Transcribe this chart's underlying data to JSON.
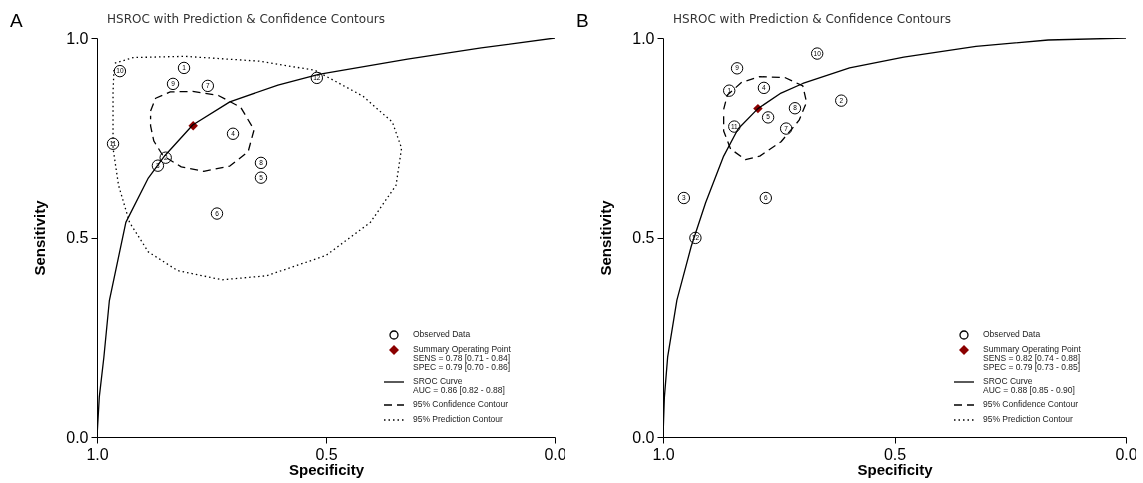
{
  "chart_data": [
    {
      "type": "scatter",
      "title": "HSROC with Prediction & Confidence Contours",
      "xlabel": "Specificity",
      "ylabel": "Sensitivity",
      "xlim": [
        1,
        0
      ],
      "ylim": [
        0,
        1
      ],
      "xticks": [
        {
          "value": 1,
          "label": "1.0"
        },
        {
          "value": 0.5,
          "label": "0.5"
        },
        {
          "value": 0,
          "label": "0.0"
        }
      ],
      "yticks": [
        {
          "value": 0,
          "label": "0.0"
        },
        {
          "value": 0.5,
          "label": "0.5"
        },
        {
          "value": 1,
          "label": "1.0"
        }
      ],
      "legend": "bottom right",
      "annotations": [
        "A",
        "SENS = 0.78 [0.71 - 0.84]",
        "SPEC = 0.79 [0.70 - 0.86]",
        "AUC = 0.86 [0.82 - 0.88]",
        {
          "text": "1",
          "x": 0.81,
          "y": 0.925
        },
        {
          "text": "2",
          "x": 0.85,
          "y": 0.7
        },
        {
          "text": "3",
          "x": 0.867,
          "y": 0.68
        },
        {
          "text": "4",
          "x": 0.703,
          "y": 0.76
        },
        {
          "text": "5",
          "x": 0.642,
          "y": 0.65
        },
        {
          "text": "6",
          "x": 0.738,
          "y": 0.56
        },
        {
          "text": "7",
          "x": 0.758,
          "y": 0.88
        },
        {
          "text": "8",
          "x": 0.642,
          "y": 0.687
        },
        {
          "text": "9",
          "x": 0.834,
          "y": 0.885
        },
        {
          "text": "10",
          "x": 0.95,
          "y": 0.917
        },
        {
          "text": "11",
          "x": 0.965,
          "y": 0.735
        },
        {
          "text": "12",
          "x": 0.52,
          "y": 0.9
        }
      ],
      "series": [
        {
          "name": "Observed Data",
          "marker": "circle",
          "color": "#000000",
          "x": [
            0.81,
            0.85,
            0.867,
            0.703,
            0.642,
            0.738,
            0.758,
            0.642,
            0.834,
            0.95,
            0.965,
            0.52
          ],
          "values": [
            0.925,
            0.7,
            0.68,
            0.76,
            0.65,
            0.56,
            0.88,
            0.687,
            0.885,
            0.917,
            0.735,
            0.9
          ]
        },
        {
          "name": "Summary Operating Point",
          "marker": "diamond",
          "color": "#8b0000",
          "x": [
            0.79
          ],
          "values": [
            0.78
          ]
        },
        {
          "name": "SROC Curve",
          "type": "line",
          "line_style": "solid",
          "color": "#000000",
          "x": [
            1,
            0.995,
            0.985,
            0.973,
            0.937,
            0.888,
            0.852,
            0.791,
            0.71,
            0.605,
            0.516,
            0.322,
            0.161,
            0
          ],
          "values": [
            0,
            0.1,
            0.2,
            0.342,
            0.538,
            0.649,
            0.705,
            0.782,
            0.84,
            0.882,
            0.909,
            0.947,
            0.975,
            1
          ]
        },
        {
          "name": "95% Confidence Contour",
          "type": "line",
          "line_style": "dashed",
          "color": "#000000",
          "x": [
            0.883,
            0.872,
            0.84,
            0.791,
            0.735,
            0.686,
            0.657,
            0.67,
            0.71,
            0.767,
            0.816,
            0.856,
            0.876,
            0.883,
            0.883
          ],
          "values": [
            0.817,
            0.849,
            0.865,
            0.866,
            0.856,
            0.826,
            0.77,
            0.715,
            0.679,
            0.666,
            0.677,
            0.705,
            0.742,
            0.78,
            0.805
          ]
        },
        {
          "name": "95% Prediction Contour",
          "type": "line",
          "line_style": "dotted",
          "color": "#000000",
          "x": [
            0.961,
            0.921,
            0.808,
            0.646,
            0.524,
            0.419,
            0.355,
            0.335,
            0.347,
            0.403,
            0.5,
            0.63,
            0.727,
            0.824,
            0.888,
            0.929,
            0.953,
            0.965,
            0.965,
            0.963
          ],
          "values": [
            0.937,
            0.951,
            0.954,
            0.942,
            0.919,
            0.854,
            0.789,
            0.724,
            0.631,
            0.538,
            0.455,
            0.404,
            0.394,
            0.417,
            0.464,
            0.538,
            0.631,
            0.724,
            0.863,
            0.92
          ]
        }
      ]
    },
    {
      "type": "scatter",
      "title": "HSROC with Prediction & Confidence Contours",
      "xlabel": "Specificity",
      "ylabel": "Sensitivity",
      "xlim": [
        1,
        0
      ],
      "ylim": [
        0,
        1
      ],
      "xticks": [
        {
          "value": 1,
          "label": "1.0"
        },
        {
          "value": 0.5,
          "label": "0.5"
        },
        {
          "value": 0,
          "label": "0.0"
        }
      ],
      "yticks": [
        {
          "value": 0,
          "label": "0.0"
        },
        {
          "value": 0.5,
          "label": "0.5"
        },
        {
          "value": 1,
          "label": "1.0"
        }
      ],
      "legend": "bottom right",
      "annotations": [
        "B",
        "SENS = 0.82 [0.74 - 0.88]",
        "SPEC = 0.79 [0.73 - 0.85]",
        "AUC = 0.88 [0.85 - 0.90]",
        {
          "text": "1",
          "x": 0.857,
          "y": 0.868
        },
        {
          "text": "2",
          "x": 0.615,
          "y": 0.843
        },
        {
          "text": "3",
          "x": 0.955,
          "y": 0.599
        },
        {
          "text": "4",
          "x": 0.782,
          "y": 0.875
        },
        {
          "text": "5",
          "x": 0.773,
          "y": 0.801
        },
        {
          "text": "6",
          "x": 0.778,
          "y": 0.599
        },
        {
          "text": "7",
          "x": 0.734,
          "y": 0.773
        },
        {
          "text": "8",
          "x": 0.715,
          "y": 0.824
        },
        {
          "text": "9",
          "x": 0.84,
          "y": 0.924
        },
        {
          "text": "10",
          "x": 0.667,
          "y": 0.961
        },
        {
          "text": "11",
          "x": 0.846,
          "y": 0.778
        },
        {
          "text": "12",
          "x": 0.93,
          "y": 0.499
        }
      ],
      "series": [
        {
          "name": "Observed Data",
          "marker": "circle",
          "color": "#000000",
          "x": [
            0.857,
            0.615,
            0.955,
            0.782,
            0.773,
            0.778,
            0.734,
            0.715,
            0.84,
            0.667,
            0.846,
            0.93
          ],
          "values": [
            0.868,
            0.843,
            0.599,
            0.875,
            0.801,
            0.599,
            0.773,
            0.824,
            0.924,
            0.961,
            0.778,
            0.499
          ]
        },
        {
          "name": "Summary Operating Point",
          "marker": "diamond",
          "color": "#8b0000",
          "x": [
            0.795
          ],
          "values": [
            0.823
          ]
        },
        {
          "name": "SROC Curve",
          "type": "line",
          "line_style": "solid",
          "color": "#000000",
          "x": [
            1,
            0.997,
            0.99,
            0.97,
            0.939,
            0.908,
            0.869,
            0.838,
            0.795,
            0.745,
            0.698,
            0.597,
            0.48,
            0.324,
            0.168,
            0
          ],
          "values": [
            0,
            0.1,
            0.2,
            0.343,
            0.478,
            0.587,
            0.704,
            0.772,
            0.823,
            0.862,
            0.886,
            0.925,
            0.952,
            0.979,
            0.995,
            1
          ]
        },
        {
          "name": "95% Confidence Contour",
          "type": "line",
          "line_style": "dashed",
          "color": "#000000",
          "x": [
            0.869,
            0.861,
            0.83,
            0.791,
            0.737,
            0.698,
            0.69,
            0.706,
            0.745,
            0.791,
            0.822,
            0.854,
            0.869,
            0.869
          ],
          "values": [
            0.821,
            0.857,
            0.889,
            0.903,
            0.901,
            0.88,
            0.839,
            0.794,
            0.74,
            0.704,
            0.695,
            0.722,
            0.767,
            0.81
          ]
        },
        {
          "name": "95% Prediction Contour",
          "type": "line",
          "line_style": "dotted",
          "color": "#000000"
        }
      ]
    }
  ]
}
